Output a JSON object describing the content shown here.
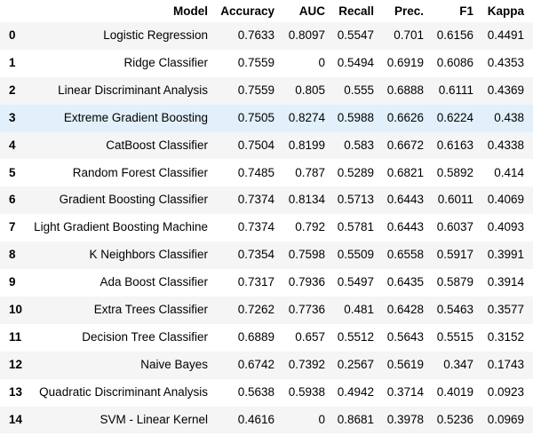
{
  "table": {
    "header": [
      "",
      "Model",
      "Accuracy",
      "AUC",
      "Recall",
      "Prec.",
      "F1",
      "Kappa"
    ],
    "rows": [
      [
        "0",
        "Logistic Regression",
        "0.7633",
        "0.8097",
        "0.5547",
        "0.701",
        "0.6156",
        "0.4491"
      ],
      [
        "1",
        "Ridge Classifier",
        "0.7559",
        "0",
        "0.5494",
        "0.6919",
        "0.6086",
        "0.4353"
      ],
      [
        "2",
        "Linear Discriminant Analysis",
        "0.7559",
        "0.805",
        "0.555",
        "0.6888",
        "0.6111",
        "0.4369"
      ],
      [
        "3",
        "Extreme Gradient Boosting",
        "0.7505",
        "0.8274",
        "0.5988",
        "0.6626",
        "0.6224",
        "0.438"
      ],
      [
        "4",
        "CatBoost Classifier",
        "0.7504",
        "0.8199",
        "0.583",
        "0.6672",
        "0.6163",
        "0.4338"
      ],
      [
        "5",
        "Random Forest Classifier",
        "0.7485",
        "0.787",
        "0.5289",
        "0.6821",
        "0.5892",
        "0.414"
      ],
      [
        "6",
        "Gradient Boosting Classifier",
        "0.7374",
        "0.8134",
        "0.5713",
        "0.6443",
        "0.6011",
        "0.4069"
      ],
      [
        "7",
        "Light Gradient Boosting Machine",
        "0.7374",
        "0.792",
        "0.5781",
        "0.6443",
        "0.6037",
        "0.4093"
      ],
      [
        "8",
        "K Neighbors Classifier",
        "0.7354",
        "0.7598",
        "0.5509",
        "0.6558",
        "0.5917",
        "0.3991"
      ],
      [
        "9",
        "Ada Boost Classifier",
        "0.7317",
        "0.7936",
        "0.5497",
        "0.6435",
        "0.5879",
        "0.3914"
      ],
      [
        "10",
        "Extra Trees Classifier",
        "0.7262",
        "0.7736",
        "0.481",
        "0.6428",
        "0.5463",
        "0.3577"
      ],
      [
        "11",
        "Decision Tree Classifier",
        "0.6889",
        "0.657",
        "0.5512",
        "0.5643",
        "0.5515",
        "0.3152"
      ],
      [
        "12",
        "Naive Bayes",
        "0.6742",
        "0.7392",
        "0.2567",
        "0.5619",
        "0.347",
        "0.1743"
      ],
      [
        "13",
        "Quadratic Discriminant Analysis",
        "0.5638",
        "0.5938",
        "0.4942",
        "0.3714",
        "0.4019",
        "0.0923"
      ],
      [
        "14",
        "SVM - Linear Kernel",
        "0.4616",
        "0",
        "0.8681",
        "0.3978",
        "0.5236",
        "0.0969"
      ]
    ]
  }
}
